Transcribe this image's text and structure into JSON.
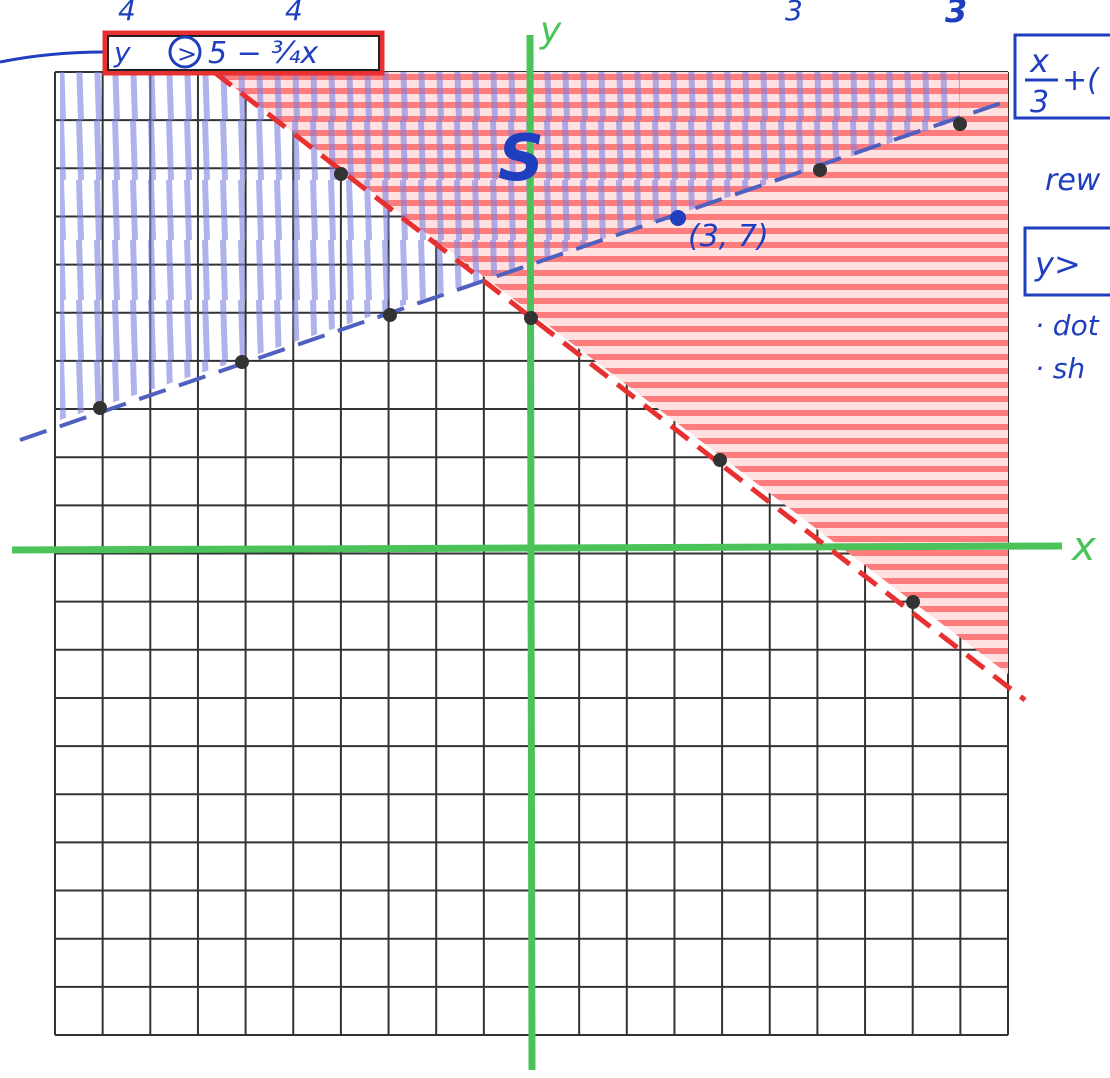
{
  "top_numbers": [
    "4",
    "4",
    "3",
    "3"
  ],
  "inequality_1": {
    "lhs": "y",
    "sign": ">",
    "rhs": "5 − ¾x"
  },
  "right_notes": {
    "fraction_num": "x",
    "fraction_den": "3",
    "fraction_rest": "+(",
    "word": "rew",
    "box": "y>",
    "bullet_1": "· dot",
    "bullet_2": "· sh"
  },
  "axis_labels": {
    "x": "x",
    "y": "y"
  },
  "region_label": "S",
  "point_label": "(3, 7)"
}
